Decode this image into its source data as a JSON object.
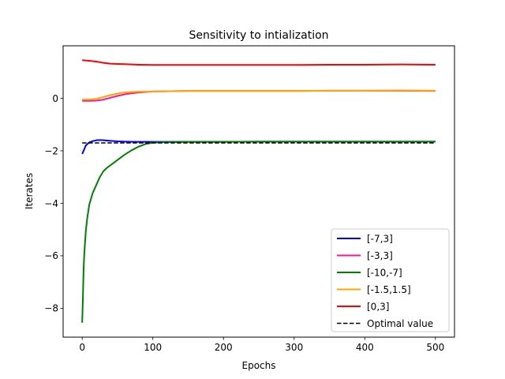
{
  "chart_data": {
    "type": "line",
    "title": "Sensitivity to intialization",
    "xlabel": "Epochs",
    "ylabel": "Iterates",
    "xlim": [
      -27,
      527
    ],
    "ylim": [
      -9.1,
      2.0
    ],
    "xticks": [
      0,
      100,
      200,
      300,
      400,
      500
    ],
    "yticks": [
      -8,
      -6,
      -4,
      -2,
      0
    ],
    "xtick_labels": [
      "0",
      "100",
      "200",
      "300",
      "400",
      "500"
    ],
    "ytick_labels": [
      "−8",
      "−6",
      "−4",
      "−2",
      "0"
    ],
    "grid": false,
    "legend_position": "lower-right",
    "series": [
      {
        "name": "[-7,3]",
        "color": "#0000ff",
        "style": "solid",
        "points": [
          [
            0,
            -2.12
          ],
          [
            2,
            -2.0
          ],
          [
            5,
            -1.8
          ],
          [
            10,
            -1.68
          ],
          [
            15,
            -1.63
          ],
          [
            20,
            -1.6
          ],
          [
            25,
            -1.59
          ],
          [
            30,
            -1.6
          ],
          [
            40,
            -1.62
          ],
          [
            50,
            -1.64
          ],
          [
            60,
            -1.65
          ],
          [
            75,
            -1.66
          ],
          [
            90,
            -1.66
          ],
          [
            100,
            -1.66
          ],
          [
            150,
            -1.66
          ],
          [
            200,
            -1.66
          ],
          [
            250,
            -1.65
          ],
          [
            300,
            -1.65
          ],
          [
            350,
            -1.65
          ],
          [
            400,
            -1.65
          ],
          [
            450,
            -1.65
          ],
          [
            500,
            -1.65
          ]
        ]
      },
      {
        "name": "[-3,3]",
        "color": "#ff1493",
        "style": "solid",
        "points": [
          [
            0,
            -0.1
          ],
          [
            10,
            -0.1
          ],
          [
            20,
            -0.09
          ],
          [
            30,
            -0.05
          ],
          [
            40,
            0.02
          ],
          [
            50,
            0.09
          ],
          [
            60,
            0.15
          ],
          [
            70,
            0.19
          ],
          [
            80,
            0.22
          ],
          [
            90,
            0.24
          ],
          [
            100,
            0.26
          ],
          [
            150,
            0.28
          ],
          [
            200,
            0.28
          ],
          [
            250,
            0.28
          ],
          [
            300,
            0.28
          ],
          [
            350,
            0.29
          ],
          [
            400,
            0.29
          ],
          [
            450,
            0.29
          ],
          [
            500,
            0.28
          ]
        ]
      },
      {
        "name": "[-10,-7]",
        "color": "#008000",
        "style": "solid",
        "points": [
          [
            0,
            -8.55
          ],
          [
            1,
            -7.6
          ],
          [
            2,
            -6.5
          ],
          [
            3,
            -5.9
          ],
          [
            5,
            -5.1
          ],
          [
            7,
            -4.6
          ],
          [
            10,
            -4.05
          ],
          [
            15,
            -3.6
          ],
          [
            20,
            -3.3
          ],
          [
            25,
            -3.0
          ],
          [
            30,
            -2.78
          ],
          [
            35,
            -2.65
          ],
          [
            40,
            -2.55
          ],
          [
            50,
            -2.35
          ],
          [
            60,
            -2.15
          ],
          [
            70,
            -1.98
          ],
          [
            80,
            -1.84
          ],
          [
            90,
            -1.74
          ],
          [
            100,
            -1.69
          ],
          [
            120,
            -1.67
          ],
          [
            150,
            -1.66
          ],
          [
            200,
            -1.66
          ],
          [
            250,
            -1.65
          ],
          [
            300,
            -1.65
          ],
          [
            350,
            -1.65
          ],
          [
            400,
            -1.65
          ],
          [
            450,
            -1.65
          ],
          [
            500,
            -1.65
          ]
        ]
      },
      {
        "name": "[-1.5,1.5]",
        "color": "#ffa500",
        "style": "solid",
        "points": [
          [
            0,
            -0.05
          ],
          [
            10,
            -0.05
          ],
          [
            20,
            -0.02
          ],
          [
            30,
            0.05
          ],
          [
            40,
            0.12
          ],
          [
            50,
            0.18
          ],
          [
            60,
            0.22
          ],
          [
            70,
            0.24
          ],
          [
            80,
            0.25
          ],
          [
            100,
            0.26
          ],
          [
            150,
            0.28
          ],
          [
            200,
            0.28
          ],
          [
            250,
            0.28
          ],
          [
            300,
            0.28
          ],
          [
            350,
            0.29
          ],
          [
            400,
            0.29
          ],
          [
            450,
            0.3
          ],
          [
            500,
            0.29
          ]
        ]
      },
      {
        "name": "[0,3]",
        "color": "#ff0000",
        "style": "solid",
        "points": [
          [
            0,
            1.45
          ],
          [
            10,
            1.43
          ],
          [
            20,
            1.4
          ],
          [
            30,
            1.35
          ],
          [
            40,
            1.32
          ],
          [
            50,
            1.31
          ],
          [
            60,
            1.3
          ],
          [
            70,
            1.29
          ],
          [
            80,
            1.28
          ],
          [
            100,
            1.27
          ],
          [
            150,
            1.27
          ],
          [
            200,
            1.27
          ],
          [
            250,
            1.27
          ],
          [
            300,
            1.27
          ],
          [
            350,
            1.28
          ],
          [
            400,
            1.28
          ],
          [
            450,
            1.29
          ],
          [
            500,
            1.28
          ]
        ]
      },
      {
        "name": "Optimal value",
        "color": "#000000",
        "style": "dashed",
        "points": [
          [
            0,
            -1.7
          ],
          [
            500,
            -1.7
          ]
        ]
      }
    ]
  }
}
